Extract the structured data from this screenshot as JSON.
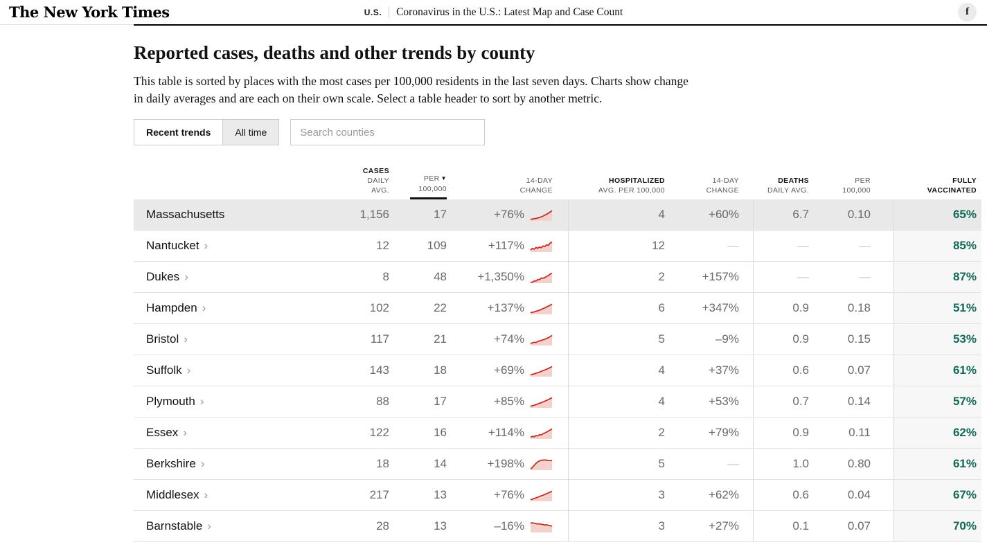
{
  "header": {
    "logo": "The New York Times",
    "section": "U.S.",
    "nav_title": "Coronavirus in the U.S.: Latest Map and Case Count"
  },
  "icons": {
    "facebook": "f",
    "sort_desc": "▼",
    "chevron_right": "›"
  },
  "page": {
    "title": "Reported cases, deaths and other trends by county",
    "description": "This table is sorted by places with the most cases per 100,000 residents in the last seven days. Charts show change in daily averages and are each on their own scale. Select a table header to sort by another metric."
  },
  "controls": {
    "tabs": [
      {
        "label": "Recent trends",
        "active": true
      },
      {
        "label": "All time",
        "active": false
      }
    ],
    "search_placeholder": "Search counties"
  },
  "colors": {
    "vaccinated_green": "#116a58",
    "spark_line": "#c72e21",
    "spark_fill": "#f3d2cd",
    "state_row_bg": "#e9e9e9",
    "vacc_col_bg": "#f7f7f7"
  },
  "table": {
    "columns": [
      {
        "id": "county",
        "line1": "",
        "line2": ""
      },
      {
        "id": "cases",
        "line1": "CASES",
        "line2": "DAILY AVG."
      },
      {
        "id": "per",
        "line1": "PER",
        "line2": "100,000",
        "sorted": true
      },
      {
        "id": "change",
        "line1": "14-DAY",
        "line2": "CHANGE"
      },
      {
        "id": "hosp",
        "line1": "HOSPITALIZED",
        "line2": "AVG. PER 100,000"
      },
      {
        "id": "hosp_change",
        "line1": "14-DAY",
        "line2": "CHANGE"
      },
      {
        "id": "deaths",
        "line1": "DEATHS",
        "line2": "DAILY AVG."
      },
      {
        "id": "deaths_per",
        "line1": "PER",
        "line2": "100,000"
      },
      {
        "id": "vacc",
        "line1": "FULLY",
        "line2": "VACCINATED"
      }
    ],
    "rows": [
      {
        "name": "Massachusetts",
        "is_county": false,
        "cases": "1,156",
        "per": "17",
        "change": "+76%",
        "hosp": "4",
        "hosp_change": "+60%",
        "deaths": "6.7",
        "deaths_per": "0.10",
        "vacc": "65%",
        "spark": [
          0.08,
          0.12,
          0.15,
          0.18,
          0.22,
          0.28,
          0.34,
          0.42,
          0.52,
          0.62,
          0.72,
          0.85,
          0.97
        ]
      },
      {
        "name": "Nantucket",
        "is_county": true,
        "cases": "12",
        "per": "109",
        "change": "+117%",
        "hosp": "12",
        "hosp_change": "—",
        "deaths": "—",
        "deaths_per": "—",
        "vacc": "85%",
        "spark": [
          0.15,
          0.3,
          0.22,
          0.4,
          0.32,
          0.45,
          0.38,
          0.55,
          0.5,
          0.68,
          0.62,
          0.85,
          0.97
        ]
      },
      {
        "name": "Dukes",
        "is_county": true,
        "cases": "8",
        "per": "48",
        "change": "+1,350%",
        "hosp": "2",
        "hosp_change": "+157%",
        "deaths": "—",
        "deaths_per": "—",
        "vacc": "87%",
        "spark": [
          0.03,
          0.03,
          0.15,
          0.15,
          0.3,
          0.3,
          0.45,
          0.45,
          0.5,
          0.65,
          0.7,
          0.88,
          0.97
        ]
      },
      {
        "name": "Hampden",
        "is_county": true,
        "cases": "102",
        "per": "22",
        "change": "+137%",
        "hosp": "6",
        "hosp_change": "+347%",
        "deaths": "0.9",
        "deaths_per": "0.18",
        "vacc": "51%",
        "spark": [
          0.1,
          0.14,
          0.18,
          0.24,
          0.3,
          0.36,
          0.44,
          0.52,
          0.6,
          0.7,
          0.78,
          0.88,
          0.97
        ]
      },
      {
        "name": "Bristol",
        "is_county": true,
        "cases": "117",
        "per": "21",
        "change": "+74%",
        "hosp": "5",
        "hosp_change": "–9%",
        "deaths": "0.9",
        "deaths_per": "0.15",
        "vacc": "53%",
        "spark": [
          0.15,
          0.2,
          0.26,
          0.24,
          0.34,
          0.4,
          0.46,
          0.52,
          0.58,
          0.66,
          0.74,
          0.85,
          0.97
        ]
      },
      {
        "name": "Suffolk",
        "is_county": true,
        "cases": "143",
        "per": "18",
        "change": "+69%",
        "hosp": "4",
        "hosp_change": "+37%",
        "deaths": "0.6",
        "deaths_per": "0.07",
        "vacc": "61%",
        "spark": [
          0.12,
          0.16,
          0.22,
          0.28,
          0.34,
          0.4,
          0.48,
          0.56,
          0.62,
          0.7,
          0.78,
          0.88,
          0.97
        ]
      },
      {
        "name": "Plymouth",
        "is_county": true,
        "cases": "88",
        "per": "17",
        "change": "+85%",
        "hosp": "4",
        "hosp_change": "+53%",
        "deaths": "0.7",
        "deaths_per": "0.14",
        "vacc": "57%",
        "spark": [
          0.1,
          0.15,
          0.2,
          0.26,
          0.32,
          0.4,
          0.46,
          0.54,
          0.62,
          0.7,
          0.78,
          0.88,
          0.97
        ]
      },
      {
        "name": "Essex",
        "is_county": true,
        "cases": "122",
        "per": "16",
        "change": "+114%",
        "hosp": "2",
        "hosp_change": "+79%",
        "deaths": "0.9",
        "deaths_per": "0.11",
        "vacc": "62%",
        "spark": [
          0.12,
          0.2,
          0.16,
          0.28,
          0.24,
          0.38,
          0.34,
          0.48,
          0.55,
          0.65,
          0.75,
          0.85,
          0.97
        ]
      },
      {
        "name": "Berkshire",
        "is_county": true,
        "cases": "18",
        "per": "14",
        "change": "+198%",
        "hosp": "5",
        "hosp_change": "—",
        "deaths": "1.0",
        "deaths_per": "0.80",
        "vacc": "61%",
        "spark": [
          0.06,
          0.2,
          0.42,
          0.62,
          0.78,
          0.88,
          0.94,
          0.97,
          0.97,
          0.95,
          0.93,
          0.92,
          0.92
        ]
      },
      {
        "name": "Middlesex",
        "is_county": true,
        "cases": "217",
        "per": "13",
        "change": "+76%",
        "hosp": "3",
        "hosp_change": "+62%",
        "deaths": "0.6",
        "deaths_per": "0.04",
        "vacc": "67%",
        "spark": [
          0.1,
          0.16,
          0.22,
          0.28,
          0.34,
          0.42,
          0.5,
          0.56,
          0.64,
          0.72,
          0.8,
          0.88,
          0.97
        ]
      },
      {
        "name": "Barnstable",
        "is_county": true,
        "cases": "28",
        "per": "13",
        "change": "–16%",
        "hosp": "3",
        "hosp_change": "+27%",
        "deaths": "0.1",
        "deaths_per": "0.07",
        "vacc": "70%",
        "spark": [
          0.88,
          0.93,
          0.88,
          0.84,
          0.8,
          0.82,
          0.78,
          0.74,
          0.7,
          0.72,
          0.66,
          0.62,
          0.58
        ]
      }
    ]
  }
}
